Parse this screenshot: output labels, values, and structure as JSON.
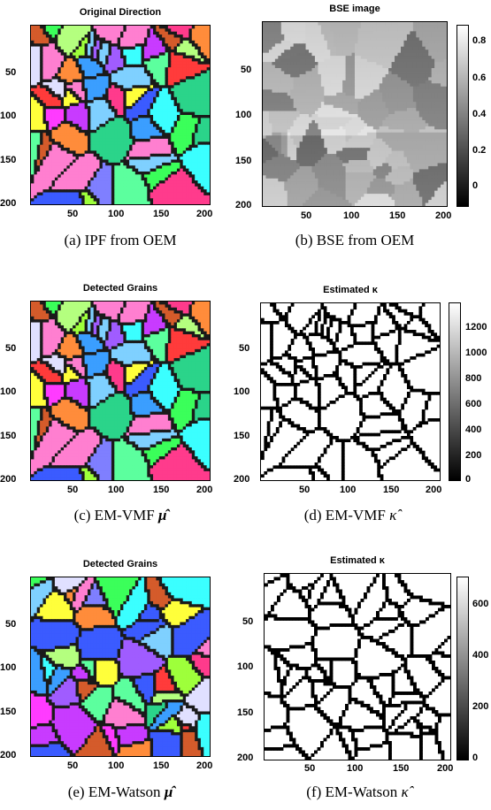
{
  "figure": {
    "panels": [
      {
        "id": "a",
        "title": "Original Direction",
        "caption": "(a)  IPF from OEM",
        "kind": "grains",
        "xticks": [
          "50",
          "100",
          "150",
          "200"
        ],
        "yticks": [
          "50",
          "100",
          "150",
          "200"
        ],
        "seed": 11
      },
      {
        "id": "b",
        "title": "BSE image",
        "caption": "(b)  BSE from OEM",
        "kind": "bse",
        "xticks": [
          "50",
          "100",
          "150",
          "200"
        ],
        "yticks": [
          "50",
          "100",
          "150",
          "200"
        ],
        "colorbar_ticks": [
          "0.8",
          "0.6",
          "0.4",
          "0.2",
          "0"
        ],
        "colorbar_range": [
          -0.1,
          0.9
        ],
        "seed": 23
      },
      {
        "id": "c",
        "title": "Detected Grains",
        "caption": "(c)  EM-VMF ",
        "caption_math": "μ̂",
        "kind": "grains",
        "xticks": [
          "50",
          "100",
          "150",
          "200"
        ],
        "yticks": [
          "50",
          "100",
          "150",
          "200"
        ],
        "seed": 11
      },
      {
        "id": "d",
        "title": "Estimated κ",
        "caption": "(d)  EM-VMF ",
        "caption_math": "κ̂",
        "kind": "boundaries",
        "xticks": [
          "50",
          "100",
          "150",
          "200"
        ],
        "yticks": [
          "50",
          "100",
          "150",
          "200"
        ],
        "colorbar_ticks": [
          "1200",
          "1000",
          "800",
          "600",
          "400",
          "200",
          "0"
        ],
        "colorbar_range": [
          0,
          1370
        ],
        "seed": 11
      },
      {
        "id": "e",
        "title": "Detected Grains",
        "caption": "(e)  EM-Watson ",
        "caption_math": "μ̂",
        "kind": "grains",
        "xticks": [
          "50",
          "100",
          "150",
          "200"
        ],
        "yticks": [
          "50",
          "100",
          "150",
          "200"
        ],
        "seed": 17
      },
      {
        "id": "f",
        "title": "Estimated κ",
        "caption": "(f)  EM-Watson ",
        "caption_math": "κ̂",
        "kind": "boundaries",
        "xticks": [
          "50",
          "100",
          "150",
          "200"
        ],
        "yticks": [
          "50",
          "100",
          "150",
          "200"
        ],
        "colorbar_ticks": [
          "600",
          "400",
          "200",
          "0"
        ],
        "colorbar_range": [
          0,
          700
        ],
        "seed": 17
      }
    ],
    "palette": [
      "#ff3b3b",
      "#3bff5a",
      "#3b5bff",
      "#ff3bff",
      "#3bffff",
      "#ffff3b",
      "#a05cff",
      "#ff8c3b",
      "#5cff9e",
      "#c83bff",
      "#3b9eff",
      "#9eff3b",
      "#ff3b8c",
      "#7fd0ff",
      "#b4ff7f",
      "#ff7fd0",
      "#7f7fff",
      "#e0e0ff",
      "#2bd48a",
      "#d45b2b"
    ]
  }
}
